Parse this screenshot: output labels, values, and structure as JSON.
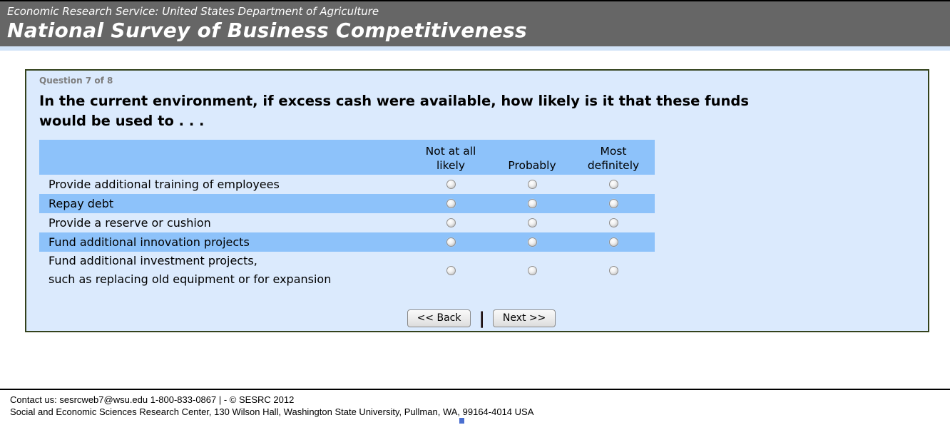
{
  "header": {
    "agency_line": "Economic Research Service: United States Department of Agriculture",
    "survey_title": "National Survey of Business Competitiveness"
  },
  "question_panel": {
    "progress_label": "Question 7 of 8",
    "question_text": "In the current environment, if excess cash were available, how likely is it that these funds\nwould be used to . . ."
  },
  "answer_table": {
    "column_headers": [
      "Not at all\nlikely",
      "Probably",
      "Most\ndefinitely"
    ],
    "rows": [
      {
        "label": "Provide additional training of employees"
      },
      {
        "label": "Repay debt"
      },
      {
        "label": "Provide a reserve or cushion"
      },
      {
        "label": "Fund additional innovation projects"
      },
      {
        "label": "Fund additional investment projects,\nsuch as replacing old equipment or for expansion"
      }
    ],
    "selected_answers": "none"
  },
  "navigation": {
    "back_button": "<< Back",
    "separator": "|",
    "next_button": "Next >>"
  },
  "footer": {
    "contact_line": "Contact us: sesrcweb7@wsu.edu 1-800-833-0867 | - © SESRC 2012",
    "address_line": "Social and Economic Sciences Research Center, 130 Wilson Hall, Washington State University, Pullman, WA, 99164-4014 USA"
  },
  "colors": {
    "header-bg": "#666666",
    "panel-bg": "#dbeafd",
    "panel-border": "#33421c",
    "band-blue": "#8dc2fa",
    "strip-blue": "#d2e3f8"
  }
}
